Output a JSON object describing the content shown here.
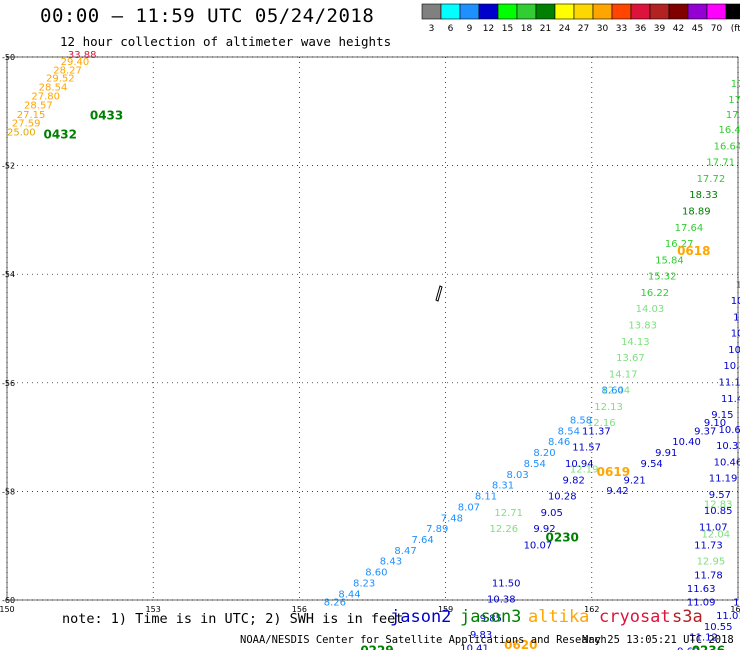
{
  "header": {
    "title": "00:00 – 11:59 UTC 05/24/2018",
    "subtitle": "12 hour collection of altimeter wave heights"
  },
  "colorbar": {
    "colors": [
      "#808080",
      "#00ffff",
      "#1e90ff",
      "#0000cd",
      "#00ff00",
      "#32cd32",
      "#008000",
      "#ffff00",
      "#ffd700",
      "#ffa500",
      "#ff4500",
      "#dc143c",
      "#b22222",
      "#800000",
      "#9400d3",
      "#ff00ff",
      "#000000"
    ],
    "labels": [
      "3",
      "6",
      "9",
      "12",
      "15",
      "18",
      "21",
      "24",
      "27",
      "30",
      "33",
      "36",
      "39",
      "42",
      "45",
      "70",
      "(ft)"
    ]
  },
  "footer": {
    "note": "note:  1) Time is in UTC;  2) SWH is in feet",
    "source": "NOAA/NESDIS Center for Satellite Applications and Research",
    "timestamp": "May 25 13:05:21 UTC 2018",
    "satellites": [
      {
        "name": "jason2",
        "color": "#0000cd"
      },
      {
        "name": "jason3",
        "color": "#008000"
      },
      {
        "name": "altika",
        "color": "#ffa500"
      },
      {
        "name": "cryosat",
        "color": "#dc143c"
      },
      {
        "name": "s3a",
        "color": "#b22222"
      }
    ]
  },
  "chart_data": {
    "type": "scatter",
    "xlim": [
      150,
      165
    ],
    "ylim": [
      -60,
      -50
    ],
    "x_ticks": [
      150,
      153,
      156,
      159,
      162,
      165
    ],
    "y_ticks": [
      -50,
      -52,
      -54,
      -56,
      -58,
      -60
    ],
    "grid": true,
    "series": [
      {
        "name": "altika",
        "points": [
          {
            "x": 150.0,
            "y": -51.45,
            "v": "25.00"
          },
          {
            "x": 150.1,
            "y": -51.28,
            "v": "27.59"
          },
          {
            "x": 150.2,
            "y": -51.12,
            "v": "27.15"
          },
          {
            "x": 150.35,
            "y": -50.95,
            "v": "28.57"
          },
          {
            "x": 150.5,
            "y": -50.78,
            "v": "27.80"
          },
          {
            "x": 150.65,
            "y": -50.62,
            "v": "28.54"
          },
          {
            "x": 150.8,
            "y": -50.45,
            "v": "29.52"
          },
          {
            "x": 150.95,
            "y": -50.3,
            "v": "28.27"
          },
          {
            "x": 151.1,
            "y": -50.15,
            "v": "29.40"
          },
          {
            "x": 151.25,
            "y": -50.02,
            "v": "33.88"
          }
        ]
      },
      {
        "name": "jason3",
        "points": [
          {
            "x": 165.05,
            "y": -50.25,
            "v": "14"
          },
          {
            "x": 164.85,
            "y": -50.55,
            "v": "17."
          },
          {
            "x": 164.8,
            "y": -50.85,
            "v": "17."
          },
          {
            "x": 164.75,
            "y": -51.12,
            "v": "17.8"
          },
          {
            "x": 164.6,
            "y": -51.4,
            "v": "16.41"
          },
          {
            "x": 164.5,
            "y": -51.7,
            "v": "16.64"
          },
          {
            "x": 164.35,
            "y": -52.0,
            "v": "17.71"
          },
          {
            "x": 164.15,
            "y": -52.3,
            "v": "17.72"
          },
          {
            "x": 164.0,
            "y": -52.6,
            "v": "18.33"
          },
          {
            "x": 163.85,
            "y": -52.9,
            "v": "18.89"
          },
          {
            "x": 163.7,
            "y": -53.2,
            "v": "17.64"
          },
          {
            "x": 163.5,
            "y": -53.5,
            "v": "16.27"
          },
          {
            "x": 163.3,
            "y": -53.8,
            "v": "15.84"
          },
          {
            "x": 163.15,
            "y": -54.1,
            "v": "15.32"
          },
          {
            "x": 163.0,
            "y": -54.4,
            "v": "16.22"
          },
          {
            "x": 162.9,
            "y": -54.7,
            "v": "14.03"
          },
          {
            "x": 162.75,
            "y": -55.0,
            "v": "13.83"
          },
          {
            "x": 162.6,
            "y": -55.3,
            "v": "14.13"
          },
          {
            "x": 162.5,
            "y": -55.6,
            "v": "13.67"
          },
          {
            "x": 162.35,
            "y": -55.9,
            "v": "14.17"
          },
          {
            "x": 162.2,
            "y": -56.2,
            "v": "12.44"
          },
          {
            "x": 162.05,
            "y": -56.5,
            "v": "12.13"
          },
          {
            "x": 161.9,
            "y": -56.8,
            "v": "12.16"
          },
          {
            "x": 161.55,
            "y": -57.65,
            "v": "12.19"
          },
          {
            "x": 160.0,
            "y": -58.45,
            "v": "12.71"
          },
          {
            "x": 159.9,
            "y": -58.75,
            "v": "12.26"
          },
          {
            "x": 164.3,
            "y": -58.3,
            "v": "12.83"
          },
          {
            "x": 164.25,
            "y": -58.85,
            "v": "12.04"
          },
          {
            "x": 164.15,
            "y": -59.35,
            "v": "12.95"
          },
          {
            "x": 165.05,
            "y": -57.02,
            "v": "12.8"
          }
        ]
      },
      {
        "name": "jason2",
        "points": [
          {
            "x": 164.95,
            "y": -54.25,
            "v": "1"
          },
          {
            "x": 164.85,
            "y": -54.55,
            "v": "10"
          },
          {
            "x": 164.9,
            "y": -54.85,
            "v": "10"
          },
          {
            "x": 164.85,
            "y": -55.15,
            "v": "10."
          },
          {
            "x": 164.8,
            "y": -55.45,
            "v": "10."
          },
          {
            "x": 164.7,
            "y": -55.75,
            "v": "10.4"
          },
          {
            "x": 164.6,
            "y": -56.05,
            "v": "11.1"
          },
          {
            "x": 164.65,
            "y": -56.35,
            "v": "11.4"
          },
          {
            "x": 164.45,
            "y": -56.65,
            "v": "9.15"
          },
          {
            "x": 164.3,
            "y": -56.8,
            "v": "9.10"
          },
          {
            "x": 164.1,
            "y": -56.95,
            "v": "9.37"
          },
          {
            "x": 163.65,
            "y": -57.15,
            "v": "10.40"
          },
          {
            "x": 163.3,
            "y": -57.35,
            "v": "9.91"
          },
          {
            "x": 163.0,
            "y": -57.55,
            "v": "9.54"
          },
          {
            "x": 162.65,
            "y": -57.85,
            "v": "9.21"
          },
          {
            "x": 162.3,
            "y": -58.05,
            "v": "9.42"
          },
          {
            "x": 164.6,
            "y": -56.92,
            "v": "10.63"
          },
          {
            "x": 164.55,
            "y": -57.22,
            "v": "10.33"
          },
          {
            "x": 164.5,
            "y": -57.52,
            "v": "10.46"
          },
          {
            "x": 164.4,
            "y": -57.82,
            "v": "11.19"
          },
          {
            "x": 164.4,
            "y": -58.12,
            "v": "9.57"
          },
          {
            "x": 164.3,
            "y": -58.42,
            "v": "10.85"
          },
          {
            "x": 164.2,
            "y": -58.72,
            "v": "11.07"
          },
          {
            "x": 164.1,
            "y": -59.05,
            "v": "11.73"
          },
          {
            "x": 164.1,
            "y": -59.6,
            "v": "11.78"
          },
          {
            "x": 163.95,
            "y": -59.85,
            "v": "11.63"
          },
          {
            "x": 163.95,
            "y": -60.1,
            "v": "11.09"
          },
          {
            "x": 164.9,
            "y": -60.1,
            "v": "11.8"
          },
          {
            "x": 164.55,
            "y": -60.35,
            "v": "11.01"
          },
          {
            "x": 164.3,
            "y": -60.55,
            "v": "10.55"
          },
          {
            "x": 164.0,
            "y": -60.75,
            "v": "11.12"
          },
          {
            "x": 161.8,
            "y": -56.95,
            "v": "11.37"
          },
          {
            "x": 161.6,
            "y": -57.25,
            "v": "11.57"
          },
          {
            "x": 161.45,
            "y": -57.55,
            "v": "10.94"
          },
          {
            "x": 161.4,
            "y": -57.85,
            "v": "9.82"
          },
          {
            "x": 161.1,
            "y": -58.15,
            "v": "10.28"
          },
          {
            "x": 160.95,
            "y": -58.45,
            "v": "9.05"
          },
          {
            "x": 160.8,
            "y": -58.75,
            "v": "9.92"
          },
          {
            "x": 160.6,
            "y": -59.05,
            "v": "10.07"
          },
          {
            "x": 159.95,
            "y": -59.75,
            "v": "11.50"
          },
          {
            "x": 159.85,
            "y": -60.05,
            "v": "10.38"
          },
          {
            "x": 159.7,
            "y": -60.4,
            "v": "9.85"
          },
          {
            "x": 159.5,
            "y": -60.7,
            "v": "9.83"
          },
          {
            "x": 159.3,
            "y": -60.95,
            "v": "10.41"
          },
          {
            "x": 163.75,
            "y": -61.0,
            "v": "9.62"
          }
        ]
      },
      {
        "name": "jason2-cyan",
        "points": [
          {
            "x": 156.5,
            "y": -60.1,
            "v": "8.26"
          },
          {
            "x": 156.8,
            "y": -59.95,
            "v": "8.44"
          },
          {
            "x": 157.1,
            "y": -59.75,
            "v": "8.23"
          },
          {
            "x": 157.35,
            "y": -59.55,
            "v": "8.60"
          },
          {
            "x": 157.65,
            "y": -59.35,
            "v": "8.43"
          },
          {
            "x": 157.95,
            "y": -59.15,
            "v": "8.47"
          },
          {
            "x": 158.3,
            "y": -58.95,
            "v": "7.64"
          },
          {
            "x": 158.6,
            "y": -58.75,
            "v": "7.89"
          },
          {
            "x": 158.9,
            "y": -58.55,
            "v": "7.48"
          },
          {
            "x": 159.25,
            "y": -58.35,
            "v": "8.07"
          },
          {
            "x": 159.6,
            "y": -58.15,
            "v": "8.11"
          },
          {
            "x": 159.95,
            "y": -57.95,
            "v": "8.31"
          },
          {
            "x": 160.25,
            "y": -57.75,
            "v": "8.03"
          },
          {
            "x": 160.6,
            "y": -57.55,
            "v": "8.54"
          },
          {
            "x": 160.8,
            "y": -57.35,
            "v": "8.20"
          },
          {
            "x": 161.1,
            "y": -57.15,
            "v": "8.46"
          },
          {
            "x": 161.3,
            "y": -56.95,
            "v": "8.54"
          },
          {
            "x": 161.55,
            "y": -56.75,
            "v": "8.58"
          },
          {
            "x": 162.2,
            "y": -56.2,
            "v": "8.60"
          }
        ]
      }
    ],
    "orbit_labels": [
      {
        "x": 151.7,
        "y": -51.15,
        "v": "0433",
        "color": "#008000"
      },
      {
        "x": 150.75,
        "y": -51.5,
        "v": "0432",
        "color": "#008000"
      },
      {
        "x": 163.75,
        "y": -53.65,
        "v": "0618",
        "color": "#ffa500"
      },
      {
        "x": 162.1,
        "y": -57.72,
        "v": "0619",
        "color": "#ffa500"
      },
      {
        "x": 161.05,
        "y": -58.92,
        "v": "0230",
        "color": "#008000"
      },
      {
        "x": 160.2,
        "y": -60.9,
        "v": "0620",
        "color": "#ffa500"
      },
      {
        "x": 157.25,
        "y": -61.0,
        "v": "0229",
        "color": "#008000"
      },
      {
        "x": 164.05,
        "y": -61.0,
        "v": "0236",
        "color": "#008000"
      },
      {
        "x": 165.05,
        "y": -59.85,
        "v": "03",
        "color": "#dc143c"
      }
    ]
  }
}
